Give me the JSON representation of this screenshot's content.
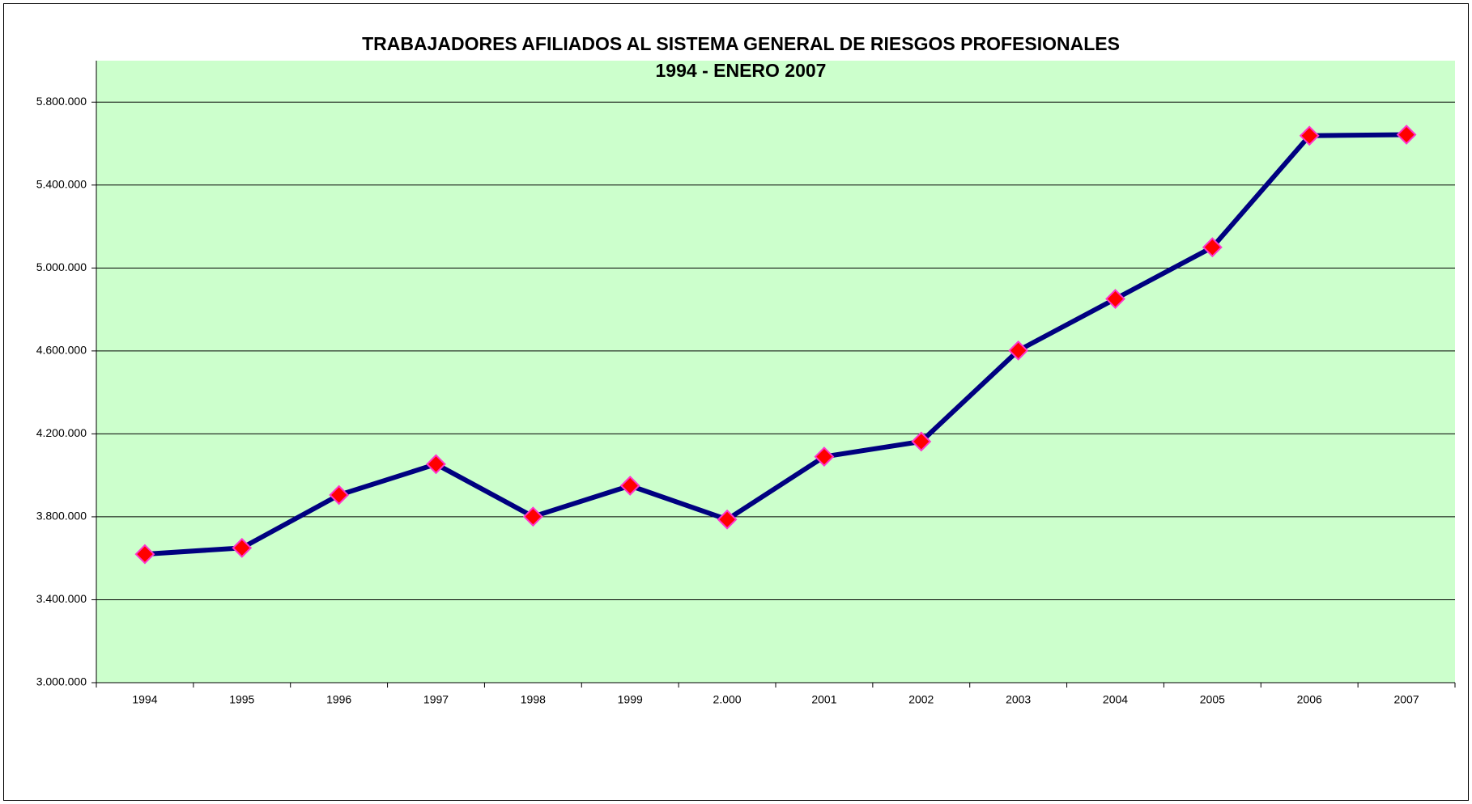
{
  "chart_data": {
    "type": "line",
    "title": "TRABAJADORES AFILIADOS AL SISTEMA GENERAL DE RIESGOS PROFESIONALES",
    "subtitle": "1994 - ENERO 2007",
    "categories": [
      "1994",
      "1995",
      "1996",
      "1997",
      "1998",
      "1999",
      "2.000",
      "2001",
      "2002",
      "2003",
      "2004",
      "2005",
      "2006",
      "2007"
    ],
    "series": [
      {
        "name": null,
        "color": "#000080",
        "marker_color": "#ff0000",
        "marker_edge_color": "#ff33cc",
        "values": [
          3620000,
          3650000,
          3905000,
          4054000,
          3801000,
          3950000,
          3787000,
          4090000,
          4163000,
          4602000,
          4851000,
          5100000,
          5638000,
          5643000
        ]
      }
    ],
    "ylim": [
      3000000,
      6000000
    ],
    "yticks": [
      {
        "value": 3000000,
        "label": "3.000.000"
      },
      {
        "value": 3400000,
        "label": "3.400.000"
      },
      {
        "value": 3800000,
        "label": "3.800.000"
      },
      {
        "value": 4200000,
        "label": "4.200.000"
      },
      {
        "value": 4600000,
        "label": "4.600.000"
      },
      {
        "value": 5000000,
        "label": "5.000.000"
      },
      {
        "value": 5400000,
        "label": "5.400.000"
      },
      {
        "value": 5800000,
        "label": "5.800.000"
      }
    ],
    "grid": true,
    "background": "#ccffcc"
  }
}
